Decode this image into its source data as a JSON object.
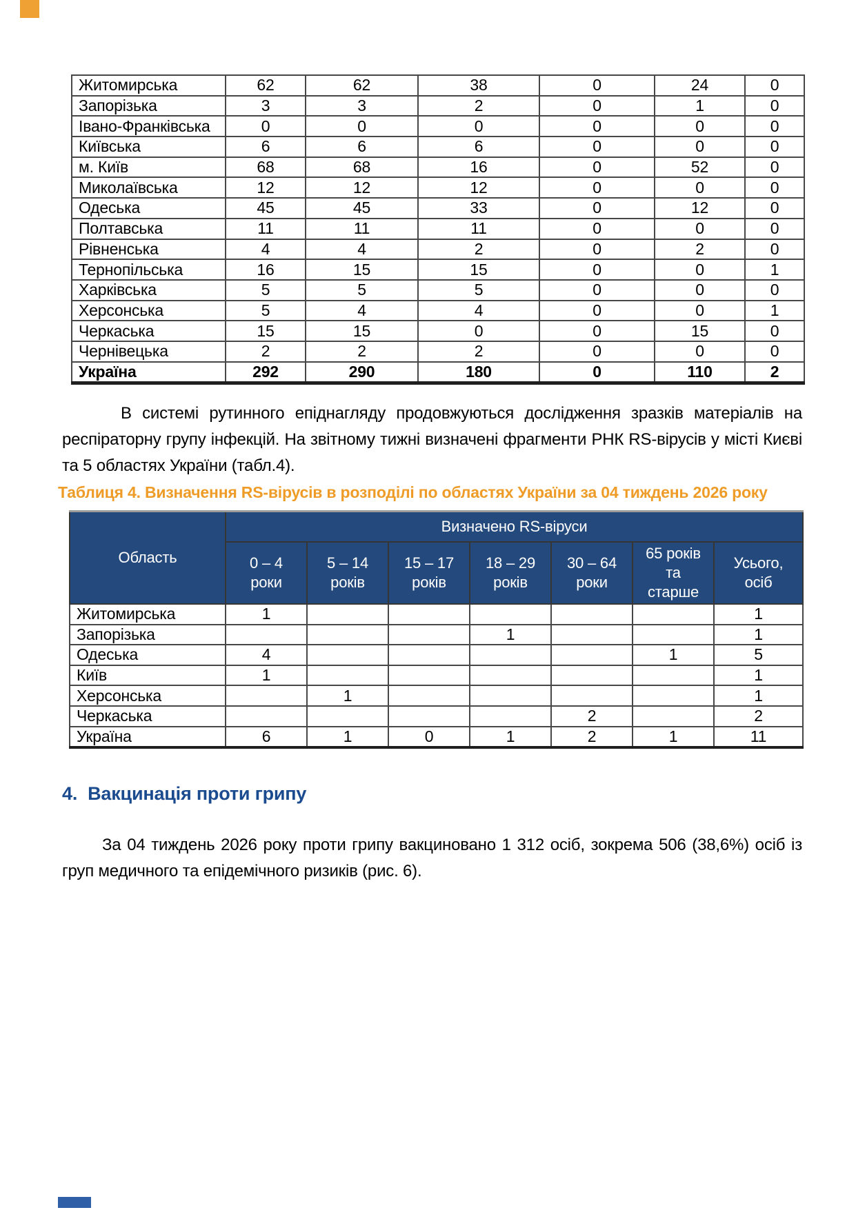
{
  "colors": {
    "table_header_bg": "#24497C",
    "table4_title_orange": "#EE9C27",
    "section_heading_blue": "#1B4B8F",
    "top_left_mark": "#F0A133",
    "bottom_left_mark": "#2F5FA7"
  },
  "table1": {
    "rows": [
      [
        "Житомирська",
        "62",
        "62",
        "38",
        "0",
        "24",
        "0"
      ],
      [
        "Запорізька",
        "3",
        "3",
        "2",
        "0",
        "1",
        "0"
      ],
      [
        "Івано-Франківська",
        "0",
        "0",
        "0",
        "0",
        "0",
        "0"
      ],
      [
        "Київська",
        "6",
        "6",
        "6",
        "0",
        "0",
        "0"
      ],
      [
        "м. Київ",
        "68",
        "68",
        "16",
        "0",
        "52",
        "0"
      ],
      [
        "Миколаївська",
        "12",
        "12",
        "12",
        "0",
        "0",
        "0"
      ],
      [
        "Одеська",
        "45",
        "45",
        "33",
        "0",
        "12",
        "0"
      ],
      [
        "Полтавська",
        "11",
        "11",
        "11",
        "0",
        "0",
        "0"
      ],
      [
        "Рівненська",
        "4",
        "4",
        "2",
        "0",
        "2",
        "0"
      ],
      [
        "Тернопільська",
        "16",
        "15",
        "15",
        "0",
        "0",
        "1"
      ],
      [
        "Харківська",
        "5",
        "5",
        "5",
        "0",
        "0",
        "0"
      ],
      [
        "Херсонська",
        "5",
        "4",
        "4",
        "0",
        "0",
        "1"
      ],
      [
        "Черкаська",
        "15",
        "15",
        "0",
        "0",
        "15",
        "0"
      ],
      [
        "Чернівецька",
        "2",
        "2",
        "2",
        "0",
        "0",
        "0"
      ]
    ],
    "total": [
      "Україна",
      "292",
      "290",
      "180",
      "0",
      "110",
      "2"
    ]
  },
  "paragraphs": {
    "surveillance": "В системі рутинного епіднагляду продовжуються дослідження зразків матеріалів на респіраторну групу інфекцій. На звітному тижні визначені фрагменти РНК RS-вірусів у місті Києві та 5 областях України (табл.4).",
    "vaccination": "За 04 тиждень 2026 року проти грипу вакциновано 1 312 осіб, зокрема 506 (38,6%) осіб із груп медичного та епідемічного ризиків (рис. 6)."
  },
  "table4": {
    "title": "Таблиця 4. Визначення RS-вірусів в розподілі по областях України за 04 тиждень 2026 року",
    "header": {
      "region": "Область",
      "group": "Визначено RS-віруси",
      "age_groups": [
        "0 – 4 роки",
        "5 – 14 років",
        "15 – 17 років",
        "18 – 29 років",
        "30 – 64 роки",
        "65 років та старше",
        "Усього, осіб"
      ]
    },
    "rows": [
      [
        "Житомирська",
        "1",
        "",
        "",
        "",
        "",
        "",
        "1"
      ],
      [
        "Запорізька",
        "",
        "",
        "",
        "1",
        "",
        "",
        "1"
      ],
      [
        "Одеська",
        "4",
        "",
        "",
        "",
        "",
        "1",
        "5"
      ],
      [
        "Київ",
        "1",
        "",
        "",
        "",
        "",
        "",
        "1"
      ],
      [
        "Херсонська",
        "",
        "1",
        "",
        "",
        "",
        "",
        "1"
      ],
      [
        "Черкаська",
        "",
        "",
        "",
        "",
        "2",
        "",
        "2"
      ],
      [
        "Україна",
        "6",
        "1",
        "0",
        "1",
        "2",
        "1",
        "11"
      ]
    ]
  },
  "section": {
    "number": "4.",
    "title": "Вакцинація проти грипу"
  }
}
